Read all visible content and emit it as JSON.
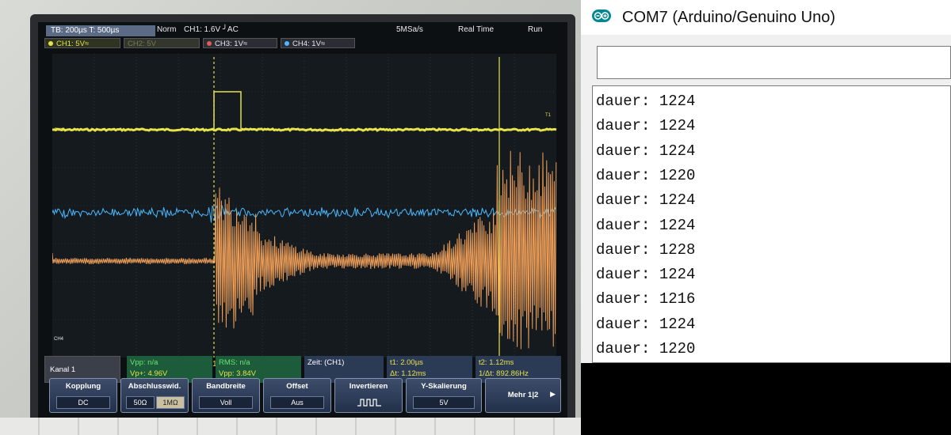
{
  "scope": {
    "header": {
      "timebase": "TB: 200µs  T: 500µs",
      "mode": "Norm",
      "trigger": "CH1: 1.6V ╯AC",
      "sample_rate": "5MSa/s",
      "acq": "Real Time",
      "run": "Run"
    },
    "channels": [
      {
        "label": "CH1: 5V≈",
        "color": "#e6e24a"
      },
      {
        "label": "CH2: 5V",
        "color": "#6ee36e"
      },
      {
        "label": "CH3: 1V≈",
        "color": "#e05a5a"
      },
      {
        "label": "CH4: 1V≈",
        "color": "#4fb6ff"
      }
    ],
    "markers": {
      "cursor1": "1",
      "cursor2": "2",
      "ch1_tag": "CH1",
      "ch4_tag": "CH4",
      "trig_tag": "T1"
    },
    "info": {
      "kanal": "Kanal 1",
      "vpp": "Vpp: n/a",
      "vp_plus": "Vp+: 4.96V",
      "rms": "RMS: n/a",
      "vpp2": "Vpp: 3.84V",
      "zeit": "Zeit: (CH1)",
      "t1": "t1: 2.00µs",
      "dt": "Δt: 1.12ms",
      "t2": "t2: 1.12ms",
      "inv_dt": "1/Δt: 892.86Hz"
    },
    "softkeys": {
      "kopplung": {
        "label": "Kopplung",
        "value": "DC"
      },
      "abschluss": {
        "label": "Abschlusswid.",
        "opt1": "50Ω",
        "opt2": "1MΩ"
      },
      "bandbreite": {
        "label": "Bandbreite",
        "value": "Voll"
      },
      "offset": {
        "label": "Offset",
        "value": "Aus"
      },
      "invertieren": {
        "label": "Invertieren"
      },
      "yskal": {
        "label": "Y-Skalierung",
        "value": "5V"
      },
      "mehr": {
        "label": "Mehr 1|2"
      }
    }
  },
  "serial_monitor": {
    "title": "COM7 (Arduino/Genuino Uno)",
    "input_value": "",
    "lines": [
      "dauer: 1224",
      "dauer: 1224",
      "dauer: 1224",
      "dauer: 1220",
      "dauer: 1224",
      "dauer: 1224",
      "dauer: 1228",
      "dauer: 1224",
      "dauer: 1216",
      "dauer: 1224",
      "dauer: 1220"
    ]
  }
}
